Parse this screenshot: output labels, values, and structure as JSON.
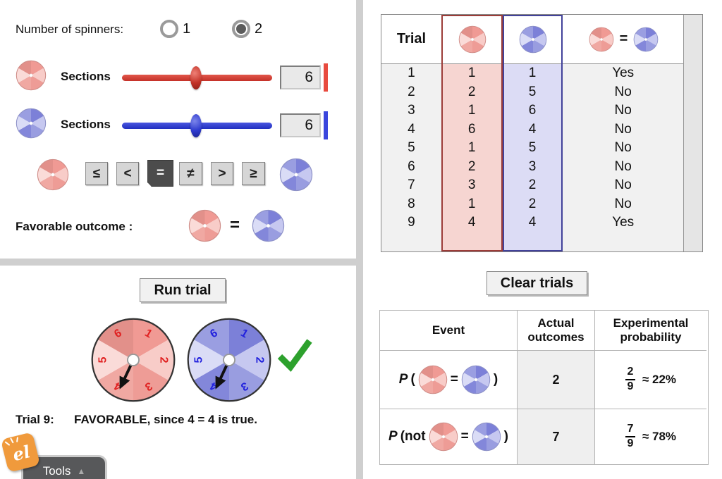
{
  "colors": {
    "red_wedges": [
      "#f09a94",
      "#f8ccc8",
      "#ee9c96",
      "#f0a8a2",
      "#fadbd8",
      "#e2908a"
    ],
    "blue_wedges": [
      "#7c80d8",
      "#c6c8f0",
      "#999de0",
      "#8387da",
      "#dadcf6",
      "#9a9ee1"
    ],
    "red_number": "#e02222",
    "blue_number": "#2222dd",
    "red_accent": "#e84b3f",
    "blue_accent": "#3a46dd",
    "green_check": "#2da12d"
  },
  "controls": {
    "number_label": "Number of spinners:",
    "radios": [
      {
        "label": "1",
        "selected": false
      },
      {
        "label": "2",
        "selected": true
      }
    ],
    "sections_label_red": "Sections",
    "sections_label_blue": "Sections",
    "red_value": "6",
    "blue_value": "6",
    "operators": [
      {
        "label": "≤",
        "selected": false
      },
      {
        "label": "<",
        "selected": false
      },
      {
        "label": "=",
        "selected": true
      },
      {
        "label": "≠",
        "selected": false
      },
      {
        "label": ">",
        "selected": false
      },
      {
        "label": "≥",
        "selected": false
      }
    ],
    "favorable_label": "Favorable outcome :",
    "favorable_operator": "="
  },
  "trial_panel": {
    "run_label": "Run trial",
    "spinner_numbers": [
      "1",
      "2",
      "3",
      "4",
      "5",
      "6"
    ],
    "arrow_angle": 205,
    "status_prefix": "Trial 9:",
    "status_message": "FAVORABLE, since 4 = 4 is true."
  },
  "tools": {
    "label": "Tools",
    "logo_text": "el"
  },
  "trials": {
    "header_trial": "Trial",
    "header_operator": "=",
    "rows": [
      {
        "trial": "1",
        "red": "1",
        "blue": "1",
        "result": "Yes"
      },
      {
        "trial": "2",
        "red": "2",
        "blue": "5",
        "result": "No"
      },
      {
        "trial": "3",
        "red": "1",
        "blue": "6",
        "result": "No"
      },
      {
        "trial": "4",
        "red": "6",
        "blue": "4",
        "result": "No"
      },
      {
        "trial": "5",
        "red": "1",
        "blue": "5",
        "result": "No"
      },
      {
        "trial": "6",
        "red": "2",
        "blue": "3",
        "result": "No"
      },
      {
        "trial": "7",
        "red": "3",
        "blue": "2",
        "result": "No"
      },
      {
        "trial": "8",
        "red": "1",
        "blue": "2",
        "result": "No"
      },
      {
        "trial": "9",
        "red": "4",
        "blue": "4",
        "result": "Yes"
      }
    ]
  },
  "clear_label": "Clear trials",
  "events": {
    "headers": [
      "Event",
      "Actual outcomes",
      "Experimental probability"
    ],
    "rows": [
      {
        "p": "P",
        "open": "(",
        "operator": "=",
        "close": ")",
        "outcomes": "2",
        "num": "2",
        "den": "9",
        "approx": "≈ 22%"
      },
      {
        "p": "P",
        "open": "(not",
        "operator": "=",
        "close": ")",
        "outcomes": "7",
        "num": "7",
        "den": "9",
        "approx": "≈ 78%"
      }
    ]
  }
}
